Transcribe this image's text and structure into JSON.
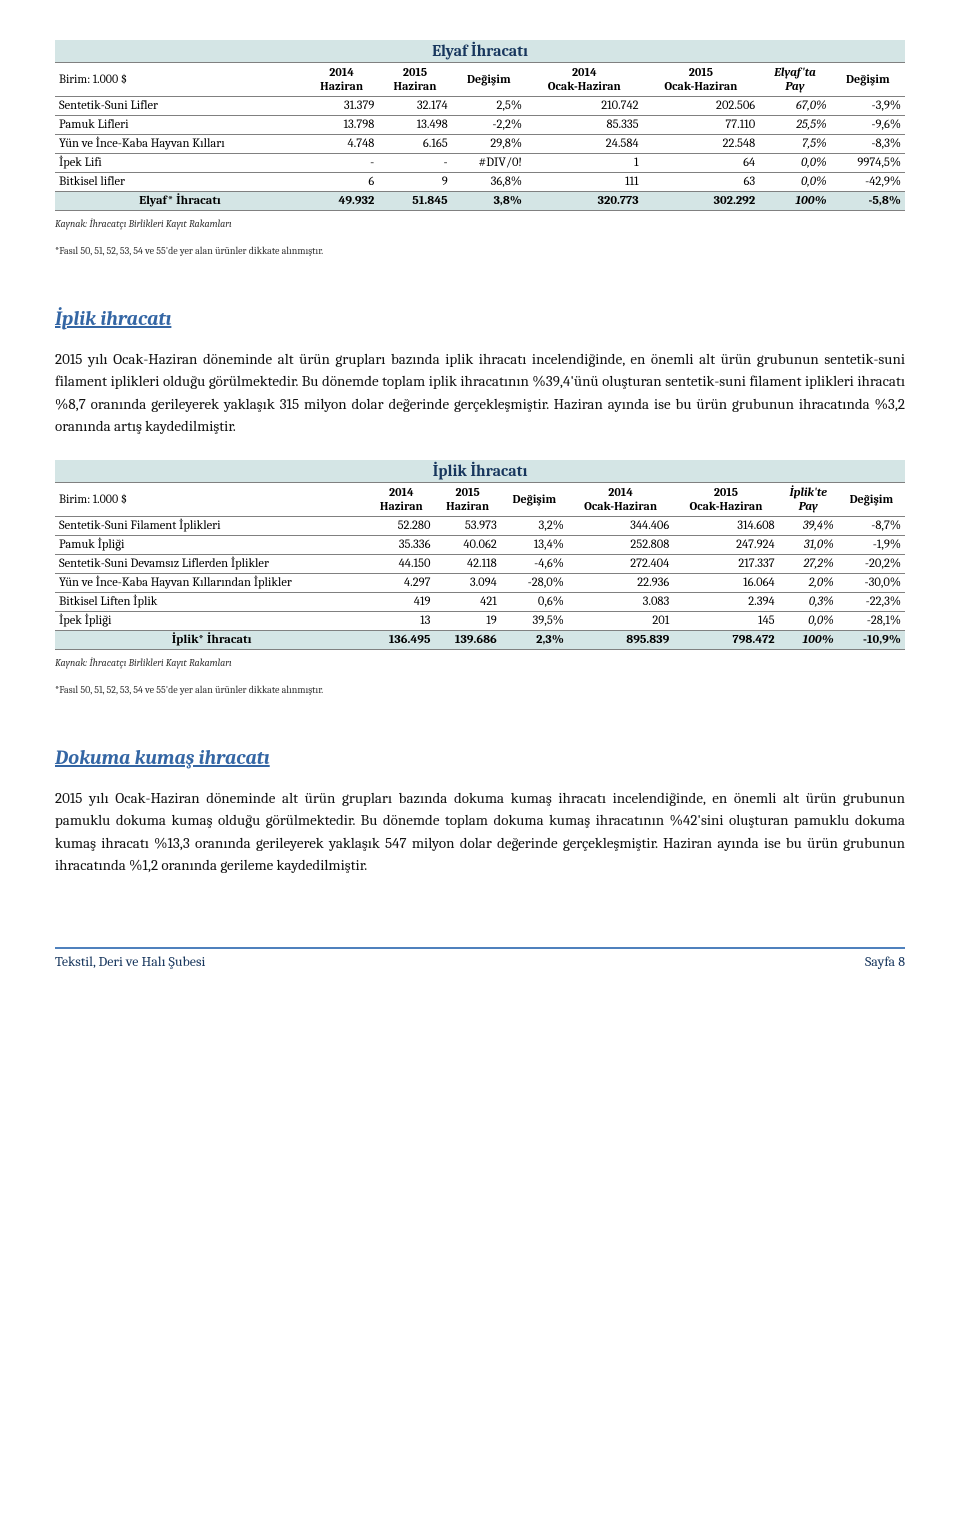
{
  "table1": {
    "title": "Elyaf İhracatı",
    "unit_label": "Birim: 1.000 $",
    "headers": [
      "2014\nHaziran",
      "2015\nHaziran",
      "Değişim",
      "2014\nOcak-Haziran",
      "2015\nOcak-Haziran",
      "Elyaf'ta\nPay",
      "Değişim"
    ],
    "rows": [
      {
        "label": "Sentetik-Suni Lifler",
        "c": [
          "31.379",
          "32.174",
          "2,5%",
          "210.742",
          "202.506",
          "67,0%",
          "-3,9%"
        ]
      },
      {
        "label": "Pamuk Lifleri",
        "c": [
          "13.798",
          "13.498",
          "-2,2%",
          "85.335",
          "77.110",
          "25,5%",
          "-9,6%"
        ]
      },
      {
        "label": "Yün ve İnce-Kaba Hayvan Kılları",
        "c": [
          "4.748",
          "6.165",
          "29,8%",
          "24.584",
          "22.548",
          "7,5%",
          "-8,3%"
        ]
      },
      {
        "label": "İpek Lifi",
        "c": [
          "-",
          "-",
          "#DIV/0!",
          "1",
          "64",
          "0,0%",
          "9974,5%"
        ]
      },
      {
        "label": "Bitkisel lifler",
        "c": [
          "6",
          "9",
          "36,8%",
          "111",
          "63",
          "0,0%",
          "-42,9%"
        ]
      }
    ],
    "total": {
      "label": "Elyaf* İhracatı",
      "c": [
        "49.932",
        "51.845",
        "3,8%",
        "320.773",
        "302.292",
        "100%",
        "-5,8%"
      ]
    },
    "footnote1": "Kaynak: İhracatçı Birlikleri Kayıt Rakamları",
    "footnote2": "*Fasıl 50, 51, 52, 53, 54 ve 55'de yer alan ürünler dikkate alınmıştır."
  },
  "section1": {
    "title": "İplik ihracatı",
    "text": "2015 yılı Ocak-Haziran döneminde alt ürün grupları bazında iplik ihracatı incelendiğinde, en önemli alt ürün grubunun sentetik-suni filament iplikleri olduğu görülmektedir. Bu dönemde toplam iplik ihracatının %39,4'ünü oluşturan sentetik-suni filament iplikleri ihracatı %8,7 oranında gerileyerek yaklaşık 315 milyon dolar değerinde gerçekleşmiştir. Haziran ayında ise bu ürün grubunun ihracatında %3,2 oranında artış kaydedilmiştir."
  },
  "table2": {
    "title": "İplik İhracatı",
    "unit_label": "Birim: 1.000 $",
    "headers": [
      "2014\nHaziran",
      "2015\nHaziran",
      "Değişim",
      "2014\nOcak-Haziran",
      "2015\nOcak-Haziran",
      "İplik'te\nPay",
      "Değişim"
    ],
    "rows": [
      {
        "label": "Sentetik-Suni Filament İplikleri",
        "c": [
          "52.280",
          "53.973",
          "3,2%",
          "344.406",
          "314.608",
          "39,4%",
          "-8,7%"
        ]
      },
      {
        "label": "Pamuk İpliği",
        "c": [
          "35.336",
          "40.062",
          "13,4%",
          "252.808",
          "247.924",
          "31,0%",
          "-1,9%"
        ]
      },
      {
        "label": "Sentetik-Suni Devamsız Liflerden İplikler",
        "c": [
          "44.150",
          "42.118",
          "-4,6%",
          "272.404",
          "217.337",
          "27,2%",
          "-20,2%"
        ]
      },
      {
        "label": "Yün ve İnce-Kaba Hayvan Kıllarından İplikler",
        "c": [
          "4.297",
          "3.094",
          "-28,0%",
          "22.936",
          "16.064",
          "2,0%",
          "-30,0%"
        ]
      },
      {
        "label": "Bitkisel Liften İplik",
        "c": [
          "419",
          "421",
          "0,6%",
          "3.083",
          "2.394",
          "0,3%",
          "-22,3%"
        ]
      },
      {
        "label": "İpek İpliği",
        "c": [
          "13",
          "19",
          "39,5%",
          "201",
          "145",
          "0,0%",
          "-28,1%"
        ]
      }
    ],
    "total": {
      "label": "İplik* İhracatı",
      "c": [
        "136.495",
        "139.686",
        "2,3%",
        "895.839",
        "798.472",
        "100%",
        "-10,9%"
      ]
    },
    "footnote1": "Kaynak: İhracatçı Birlikleri Kayıt Rakamları",
    "footnote2": "*Fasıl 50, 51, 52, 53, 54 ve 55'de yer alan ürünler dikkate alınmıştır."
  },
  "section2": {
    "title": "Dokuma kumaş ihracatı",
    "text": "2015 yılı Ocak-Haziran döneminde alt ürün grupları bazında dokuma kumaş ihracatı incelendiğinde, en önemli alt ürün grubunun pamuklu dokuma kumaş olduğu görülmektedir. Bu dönemde toplam dokuma kumaş ihracatının %42'sini oluşturan pamuklu dokuma kumaş ihracatı %13,3 oranında gerileyerek yaklaşık 547 milyon dolar değerinde gerçekleşmiştir. Haziran ayında ise bu ürün grubunun ihracatında %1,2 oranında gerileme kaydedilmiştir."
  },
  "footer": {
    "left": "Tekstil, Deri ve Halı Şubesi",
    "right": "Sayfa 8"
  },
  "colors": {
    "header_bg": "#d4e5e5",
    "title_fg": "#17365d",
    "section_fg": "#3466a4",
    "footer_border": "#4f81bd"
  }
}
